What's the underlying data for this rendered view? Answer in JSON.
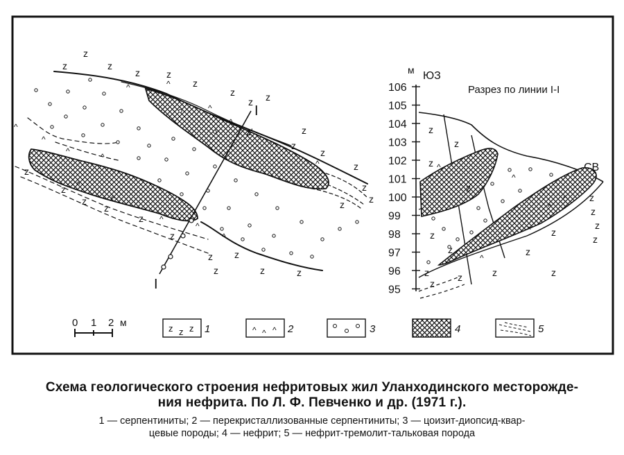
{
  "map": {
    "line_label_top": "I",
    "line_label_bottom": "I"
  },
  "section": {
    "axis_unit": "м",
    "dir_left": "ЮЗ",
    "dir_right": "СВ",
    "title": "Разрез по линии I-I",
    "ticks": [
      "106",
      "105",
      "104",
      "103",
      "102",
      "101",
      "100",
      "99",
      "98",
      "97",
      "96",
      "95"
    ]
  },
  "scale": {
    "labels": [
      "0",
      "1",
      "2"
    ],
    "unit": "м"
  },
  "legend": {
    "items": [
      {
        "num": "1",
        "symbol": "z z z"
      },
      {
        "num": "2",
        "symbol": "^ ^ ^"
      },
      {
        "num": "3",
        "symbol": "o o o"
      },
      {
        "num": "4",
        "symbol": "crosshatch"
      },
      {
        "num": "5",
        "symbol": "dashes"
      }
    ]
  },
  "caption": {
    "title_line1": "Схема геологического строения нефритовых жил Уланходинского месторожде-",
    "title_line2": "ния нефрита. По Л. Ф. Певченко и др. (1971 г.).",
    "legend_line1": "1 — серпентиниты;  2 — перекристаллизованные  серпентиниты;  3 — цоизит-диопсид-квар-",
    "legend_line2": "цевые  породы;  4 — нефрит;  5 — нефрит-тремолит-тальковая  порода"
  },
  "colors": {
    "ink": "#111111",
    "paper": "#ffffff"
  }
}
